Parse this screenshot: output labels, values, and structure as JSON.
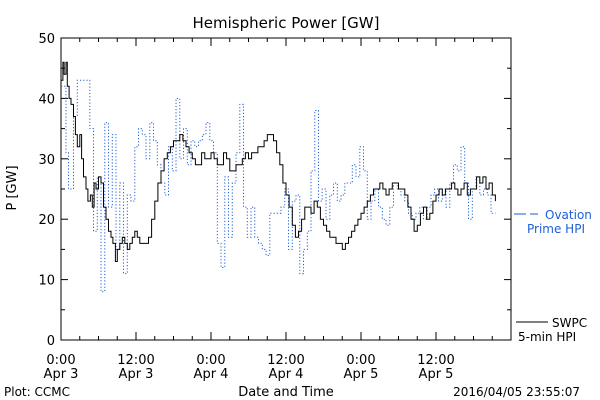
{
  "chart_data": {
    "type": "line",
    "title": "Hemispheric Power [GW]",
    "ylabel": "P [GW]",
    "xlabel": "Date and Time",
    "ylim": [
      0,
      50
    ],
    "y_ticks": [
      0,
      10,
      20,
      30,
      40,
      50
    ],
    "x_unit": "hours since 2016-04-03 00:00",
    "xlim": [
      0,
      72
    ],
    "x_ticks": [
      {
        "x": 0,
        "time": "0:00",
        "date": "Apr 3"
      },
      {
        "x": 12,
        "time": "12:00",
        "date": "Apr 3"
      },
      {
        "x": 24,
        "time": "0:00",
        "date": "Apr 4"
      },
      {
        "x": 36,
        "time": "12:00",
        "date": "Apr 4"
      },
      {
        "x": 48,
        "time": "0:00",
        "date": "Apr 5"
      },
      {
        "x": 60,
        "time": "12:00",
        "date": "Apr 5"
      }
    ],
    "series": [
      {
        "name": "SWPC 5-min HPI",
        "style": "solid",
        "color": "#000000",
        "points": [
          [
            0,
            43
          ],
          [
            0.3,
            46
          ],
          [
            0.5,
            44
          ],
          [
            0.8,
            46
          ],
          [
            1,
            42
          ],
          [
            1.3,
            40
          ],
          [
            1.6,
            39
          ],
          [
            2,
            37
          ],
          [
            2.3,
            34
          ],
          [
            2.6,
            32
          ],
          [
            3,
            34
          ],
          [
            3.3,
            30
          ],
          [
            3.6,
            27
          ],
          [
            4,
            25
          ],
          [
            4.3,
            23
          ],
          [
            4.7,
            24
          ],
          [
            5,
            22
          ],
          [
            5.3,
            26
          ],
          [
            5.6,
            25
          ],
          [
            6,
            27
          ],
          [
            6.4,
            26
          ],
          [
            6.8,
            22
          ],
          [
            7.2,
            20
          ],
          [
            7.6,
            18
          ],
          [
            8,
            17
          ],
          [
            8.3,
            16
          ],
          [
            8.7,
            13
          ],
          [
            9,
            15
          ],
          [
            9.4,
            16
          ],
          [
            9.8,
            17
          ],
          [
            10.2,
            16
          ],
          [
            10.6,
            15
          ],
          [
            11,
            16
          ],
          [
            11.4,
            17
          ],
          [
            11.8,
            18
          ],
          [
            12.2,
            17
          ],
          [
            12.6,
            16
          ],
          [
            13,
            16
          ],
          [
            13.5,
            16
          ],
          [
            14,
            17
          ],
          [
            14.5,
            20
          ],
          [
            15,
            23
          ],
          [
            15.5,
            26
          ],
          [
            16,
            28
          ],
          [
            16.5,
            30
          ],
          [
            17,
            31
          ],
          [
            17.5,
            32
          ],
          [
            18,
            33
          ],
          [
            18.5,
            33
          ],
          [
            19,
            34
          ],
          [
            19.5,
            33
          ],
          [
            20,
            32
          ],
          [
            20.5,
            31
          ],
          [
            21,
            30
          ],
          [
            21.5,
            29
          ],
          [
            22,
            29
          ],
          [
            22.5,
            31
          ],
          [
            23,
            30
          ],
          [
            23.5,
            30
          ],
          [
            24,
            31
          ],
          [
            24.5,
            30
          ],
          [
            25,
            29
          ],
          [
            25.5,
            29
          ],
          [
            26,
            31
          ],
          [
            26.5,
            30
          ],
          [
            27,
            28
          ],
          [
            27.5,
            28
          ],
          [
            28,
            29
          ],
          [
            28.5,
            29
          ],
          [
            29,
            30
          ],
          [
            29.5,
            31
          ],
          [
            30,
            30
          ],
          [
            30.5,
            31
          ],
          [
            31,
            31
          ],
          [
            31.5,
            32
          ],
          [
            32,
            32
          ],
          [
            32.5,
            33
          ],
          [
            33,
            34
          ],
          [
            33.5,
            34
          ],
          [
            34,
            33
          ],
          [
            34.5,
            31
          ],
          [
            35,
            29
          ],
          [
            35.5,
            26
          ],
          [
            36,
            24
          ],
          [
            36.5,
            22
          ],
          [
            37,
            19
          ],
          [
            37.5,
            17
          ],
          [
            38,
            18
          ],
          [
            38.5,
            20
          ],
          [
            39,
            22
          ],
          [
            39.5,
            22
          ],
          [
            40,
            21
          ],
          [
            40.5,
            23
          ],
          [
            41,
            22
          ],
          [
            41.5,
            20
          ],
          [
            42,
            19
          ],
          [
            42.5,
            18
          ],
          [
            43,
            17
          ],
          [
            43.5,
            17
          ],
          [
            44,
            16
          ],
          [
            44.5,
            16
          ],
          [
            45,
            15
          ],
          [
            45.5,
            16
          ],
          [
            46,
            17
          ],
          [
            46.5,
            18
          ],
          [
            47,
            19
          ],
          [
            47.5,
            20
          ],
          [
            48,
            21
          ],
          [
            48.5,
            22
          ],
          [
            49,
            23
          ],
          [
            49.5,
            24
          ],
          [
            50,
            25
          ],
          [
            50.5,
            25
          ],
          [
            51,
            26
          ],
          [
            51.5,
            25
          ],
          [
            52,
            24
          ],
          [
            52.5,
            25
          ],
          [
            53,
            26
          ],
          [
            53.5,
            26
          ],
          [
            54,
            25
          ],
          [
            54.5,
            25
          ],
          [
            55,
            24
          ],
          [
            55.5,
            22
          ],
          [
            56,
            20
          ],
          [
            56.5,
            18
          ],
          [
            57,
            19
          ],
          [
            57.5,
            21
          ],
          [
            58,
            22
          ],
          [
            58.5,
            20
          ],
          [
            59,
            21
          ],
          [
            59.5,
            23
          ],
          [
            60,
            24
          ],
          [
            60.5,
            25
          ],
          [
            61,
            24
          ],
          [
            61.5,
            25
          ],
          [
            62,
            25
          ],
          [
            62.5,
            26
          ],
          [
            63,
            25
          ],
          [
            63.5,
            24
          ],
          [
            64,
            25
          ],
          [
            64.5,
            26
          ],
          [
            65,
            24
          ],
          [
            65.5,
            25
          ],
          [
            66,
            25
          ],
          [
            66.5,
            27
          ],
          [
            67,
            26
          ],
          [
            67.5,
            27
          ],
          [
            68,
            25
          ],
          [
            68.5,
            26
          ],
          [
            69,
            24
          ],
          [
            69.5,
            23
          ]
        ]
      },
      {
        "name": "Ovation Prime HPI",
        "style": "dotted",
        "color": "#1f5fd6",
        "points": [
          [
            0,
            42
          ],
          [
            0.8,
            31
          ],
          [
            1.2,
            25
          ],
          [
            2,
            37
          ],
          [
            2.6,
            43
          ],
          [
            4.6,
            35
          ],
          [
            5.2,
            18
          ],
          [
            5.8,
            27
          ],
          [
            6.4,
            8
          ],
          [
            7,
            36
          ],
          [
            7.6,
            22
          ],
          [
            8.2,
            34
          ],
          [
            8.8,
            15
          ],
          [
            9.4,
            26
          ],
          [
            10,
            11
          ],
          [
            10.6,
            24
          ],
          [
            11.2,
            23
          ],
          [
            11.8,
            32
          ],
          [
            12.4,
            35
          ],
          [
            13,
            34
          ],
          [
            13.6,
            30
          ],
          [
            14.2,
            36
          ],
          [
            14.8,
            33
          ],
          [
            15.4,
            29
          ],
          [
            16,
            26
          ],
          [
            16.6,
            24
          ],
          [
            17.2,
            32
          ],
          [
            17.8,
            28
          ],
          [
            18.4,
            40
          ],
          [
            19,
            30
          ],
          [
            19.6,
            35
          ],
          [
            20.2,
            29
          ],
          [
            20.8,
            33
          ],
          [
            21.4,
            32
          ],
          [
            22,
            33
          ],
          [
            22.6,
            34
          ],
          [
            23.2,
            36
          ],
          [
            23.8,
            33
          ],
          [
            24.4,
            31
          ],
          [
            25,
            16
          ],
          [
            25.6,
            12
          ],
          [
            26.2,
            27
          ],
          [
            26.8,
            17
          ],
          [
            27.4,
            26
          ],
          [
            28,
            31
          ],
          [
            28.6,
            39
          ],
          [
            29.2,
            22
          ],
          [
            29.8,
            17
          ],
          [
            30.4,
            22
          ],
          [
            31,
            17
          ],
          [
            31.6,
            16
          ],
          [
            32.2,
            15
          ],
          [
            32.8,
            14
          ],
          [
            33.4,
            21
          ],
          [
            34,
            21
          ],
          [
            34.6,
            21
          ],
          [
            35.2,
            22
          ],
          [
            35.8,
            25
          ],
          [
            36.4,
            15
          ],
          [
            37,
            23
          ],
          [
            37.6,
            24
          ],
          [
            38.2,
            11
          ],
          [
            38.8,
            15
          ],
          [
            39.4,
            18
          ],
          [
            40,
            28
          ],
          [
            40.6,
            38
          ],
          [
            41.2,
            23
          ],
          [
            41.8,
            25
          ],
          [
            42.4,
            20
          ],
          [
            43,
            24
          ],
          [
            43.6,
            26
          ],
          [
            44.2,
            23
          ],
          [
            44.8,
            24
          ],
          [
            45.4,
            26
          ],
          [
            46,
            26
          ],
          [
            46.6,
            29
          ],
          [
            47.2,
            27
          ],
          [
            47.8,
            32
          ],
          [
            48.4,
            28
          ],
          [
            49,
            20
          ],
          [
            49.6,
            23
          ],
          [
            50.2,
            25
          ],
          [
            50.8,
            22
          ],
          [
            51.4,
            20
          ],
          [
            52,
            19
          ],
          [
            52.6,
            22
          ],
          [
            53.2,
            26
          ],
          [
            53.8,
            25
          ],
          [
            54.4,
            24
          ],
          [
            55,
            23
          ],
          [
            55.6,
            21
          ],
          [
            56.2,
            20
          ],
          [
            56.8,
            21
          ],
          [
            57.4,
            22
          ],
          [
            58,
            20
          ],
          [
            58.6,
            22
          ],
          [
            59.2,
            24
          ],
          [
            59.8,
            25
          ],
          [
            60.4,
            23
          ],
          [
            61,
            25
          ],
          [
            61.6,
            22
          ],
          [
            62.2,
            26
          ],
          [
            62.8,
            29
          ],
          [
            63.4,
            28
          ],
          [
            64,
            32
          ],
          [
            64.6,
            26
          ],
          [
            65.2,
            20
          ],
          [
            65.8,
            25
          ],
          [
            66.4,
            27
          ],
          [
            67,
            24
          ],
          [
            67.6,
            25
          ],
          [
            68.2,
            24
          ],
          [
            68.8,
            21
          ],
          [
            69.5,
            21
          ]
        ]
      }
    ],
    "legend": [
      {
        "line1": "SWPC",
        "line2": "5-min HPI",
        "style": "solid",
        "color": "#000000"
      },
      {
        "line1": "Ovation",
        "line2": "Prime HPI",
        "style": "dotted",
        "color": "#1f5fd6"
      }
    ]
  },
  "footer": {
    "credit": "Plot: CCMC",
    "timestamp": "2016/04/05 23:55:07"
  }
}
